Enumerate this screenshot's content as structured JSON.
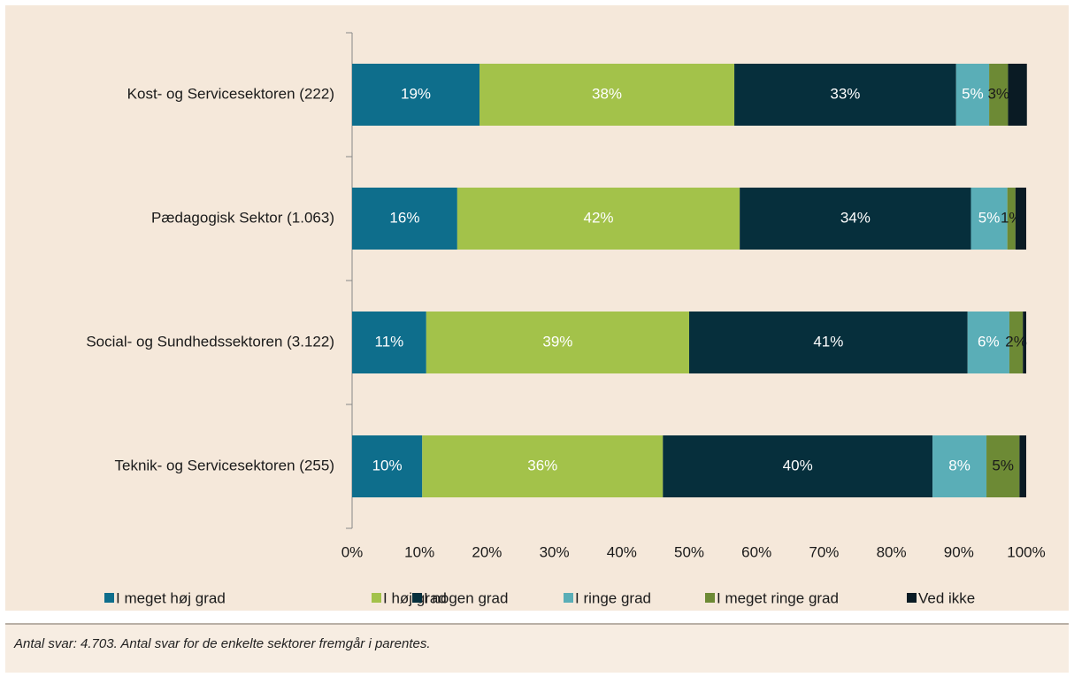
{
  "chart_data": {
    "type": "stacked_barh",
    "categories": [
      "Kost- og Servicesektoren (222)",
      "Pædagogisk Sektor (1.063)",
      "Social- og Sundhedssektoren (3.122)",
      "Teknik- og Servicesektoren (255)"
    ],
    "series": [
      {
        "name": "I meget høj grad",
        "color": "#0e6e8c",
        "label_color": "#ffffff",
        "values": [
          18.9,
          15.6,
          11.0,
          10.4
        ],
        "value_labels": [
          "19%",
          "16%",
          "11%",
          "10%"
        ]
      },
      {
        "name": "I høj grad",
        "color": "#a3c24a",
        "label_color": "#ffffff",
        "values": [
          37.8,
          41.9,
          39.0,
          35.7
        ],
        "value_labels": [
          "38%",
          "42%",
          "39%",
          "36%"
        ]
      },
      {
        "name": "I nogen grad",
        "color": "#062f3c",
        "label_color": "#ffffff",
        "values": [
          32.9,
          34.3,
          41.3,
          40.0
        ],
        "value_labels": [
          "33%",
          "34%",
          "41%",
          "40%"
        ]
      },
      {
        "name": "I ringe grad",
        "color": "#5aaeb7",
        "label_color": "#ffffff",
        "values": [
          4.9,
          5.4,
          6.2,
          8.0
        ],
        "value_labels": [
          "5%",
          "5%",
          "6%",
          "8%"
        ]
      },
      {
        "name": "I meget ringe grad",
        "color": "#6d8a35",
        "label_color": "#1a1a1a",
        "values": [
          2.8,
          1.2,
          2.0,
          4.9
        ],
        "value_labels": [
          "3%",
          "1%",
          "2%",
          "5%"
        ]
      },
      {
        "name": "Ved ikke",
        "color": "#0a1b24",
        "values": [
          2.8,
          1.6,
          0.5,
          1.0
        ]
      }
    ],
    "xlim": [
      0,
      100
    ],
    "xticks": [
      {
        "value": 0,
        "label": "0%"
      },
      {
        "value": 10,
        "label": "10%"
      },
      {
        "value": 20,
        "label": "20%"
      },
      {
        "value": 30,
        "label": "30%"
      },
      {
        "value": 40,
        "label": "40%"
      },
      {
        "value": 50,
        "label": "50%"
      },
      {
        "value": 60,
        "label": "60%"
      },
      {
        "value": 70,
        "label": "70%"
      },
      {
        "value": 80,
        "label": "80%"
      },
      {
        "value": 90,
        "label": "90%"
      },
      {
        "value": 100,
        "label": "100%"
      }
    ],
    "legend": "bottom",
    "footnote": "Antal svar: 4.703. Antal svar for de enkelte sektorer fremgår i parentes."
  }
}
